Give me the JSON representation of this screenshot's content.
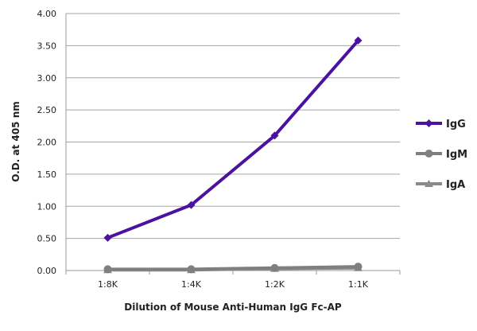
{
  "chart_data": {
    "type": "line",
    "title": "",
    "xlabel": "Dilution of Mouse Anti-Human IgG Fc-AP",
    "ylabel": "O.D. at 405 nm",
    "categories": [
      "1:8K",
      "1:4K",
      "1:2K",
      "1:1K"
    ],
    "ylim": [
      0,
      4
    ],
    "yticks": [
      "0.00",
      "0.50",
      "1.00",
      "1.50",
      "2.00",
      "2.50",
      "3.00",
      "3.50",
      "4.00"
    ],
    "grid": true,
    "legend_placement": "right",
    "series": [
      {
        "name": "IgG",
        "values": [
          0.51,
          1.02,
          2.1,
          3.58
        ],
        "color": "#4b12a0",
        "marker": "diamond"
      },
      {
        "name": "IgM",
        "values": [
          0.02,
          0.02,
          0.04,
          0.06
        ],
        "color": "#7f7f7f",
        "marker": "circle"
      },
      {
        "name": "IgA",
        "values": [
          0.01,
          0.01,
          0.03,
          0.04
        ],
        "color": "#8a8a8a",
        "marker": "triangle"
      }
    ]
  }
}
